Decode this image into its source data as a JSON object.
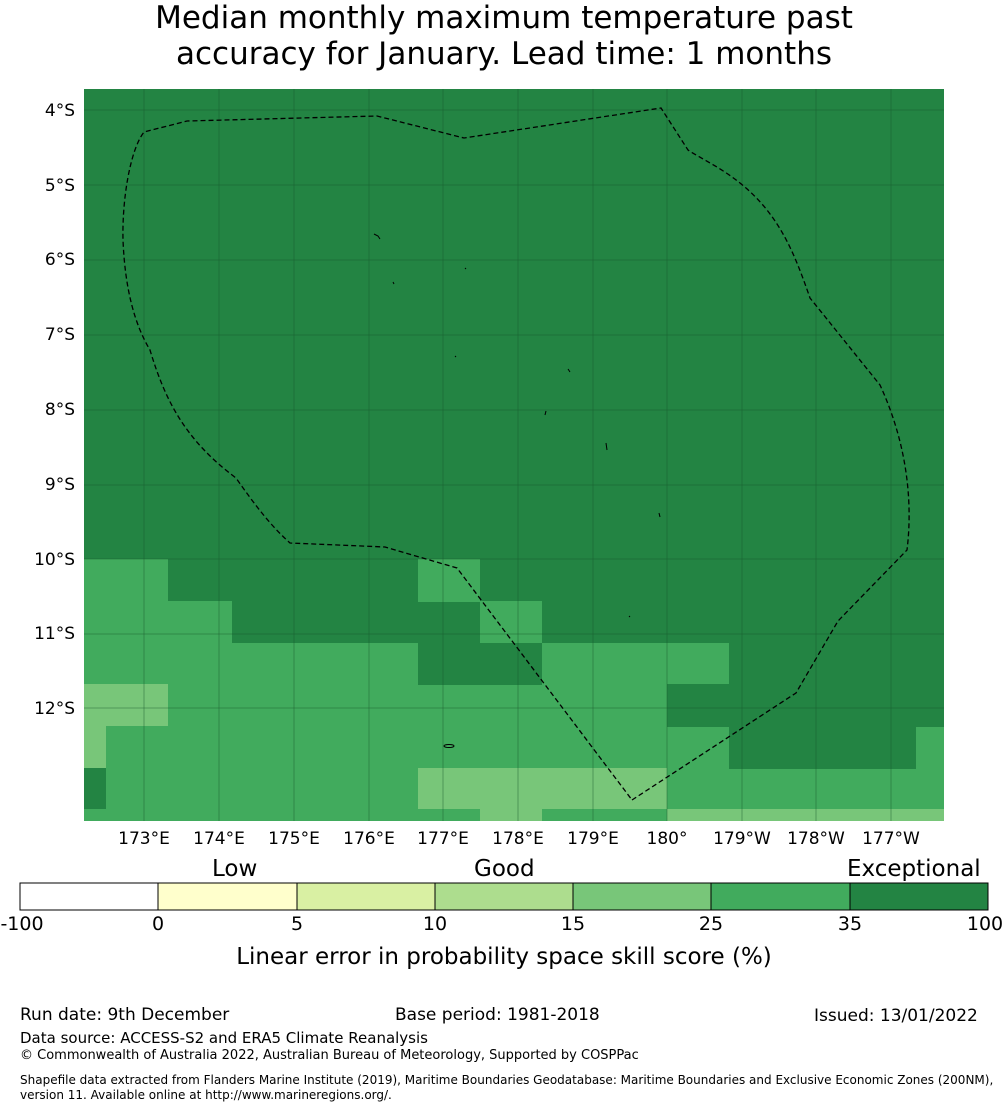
{
  "title": {
    "line1": "Median monthly maximum temperature past",
    "line2": "accuracy for January. Lead time: 1 months"
  },
  "map": {
    "lat_labels": [
      "4°S",
      "5°S",
      "6°S",
      "7°S",
      "8°S",
      "9°S",
      "10°S",
      "11°S",
      "12°S"
    ],
    "lon_labels": [
      "173°E",
      "174°E",
      "175°E",
      "176°E",
      "177°E",
      "178°E",
      "179°E",
      "180°",
      "179°W",
      "178°W",
      "177°W"
    ],
    "colors": {
      "exceptional_dark": "#238443",
      "very_good": "#41ab5d",
      "good": "#78c679",
      "boundary_line": "#000000",
      "gridline": "#1a5a2d"
    },
    "dominant_category": "35 to 100 (Exceptional) across most of the region; 25 to 35 in the south"
  },
  "colorbar": {
    "tiers": {
      "low": "Low",
      "good": "Good",
      "exceptional": "Exceptional"
    },
    "ticks": [
      "-100",
      "0",
      "5",
      "10",
      "15",
      "25",
      "35",
      "100"
    ],
    "segment_colors": [
      "#ffffff",
      "#ffffcc",
      "#d9f0a3",
      "#addd8e",
      "#78c679",
      "#41ab5d",
      "#238443"
    ],
    "label": "Linear error in probability space skill score (%)"
  },
  "footer": {
    "run_date": "Run date: 9th December",
    "base_period": "Base period: 1981-2018",
    "issued": "Issued: 13/01/2022",
    "data_source": "Data source: ACCESS-S2 and ERA5 Climate Reanalysis",
    "copyright": "© Commonwealth of Australia 2022, Australian Bureau of Meteorology, Supported by COSPPac",
    "shapefile_line1": "Shapefile data extracted from Flanders Marine Institute (2019), Maritime Boundaries Geodatabase: Maritime Boundaries and Exclusive Economic Zones (200NM),",
    "shapefile_line2": "version 11. Available online at http://www.marineregions.org/."
  }
}
